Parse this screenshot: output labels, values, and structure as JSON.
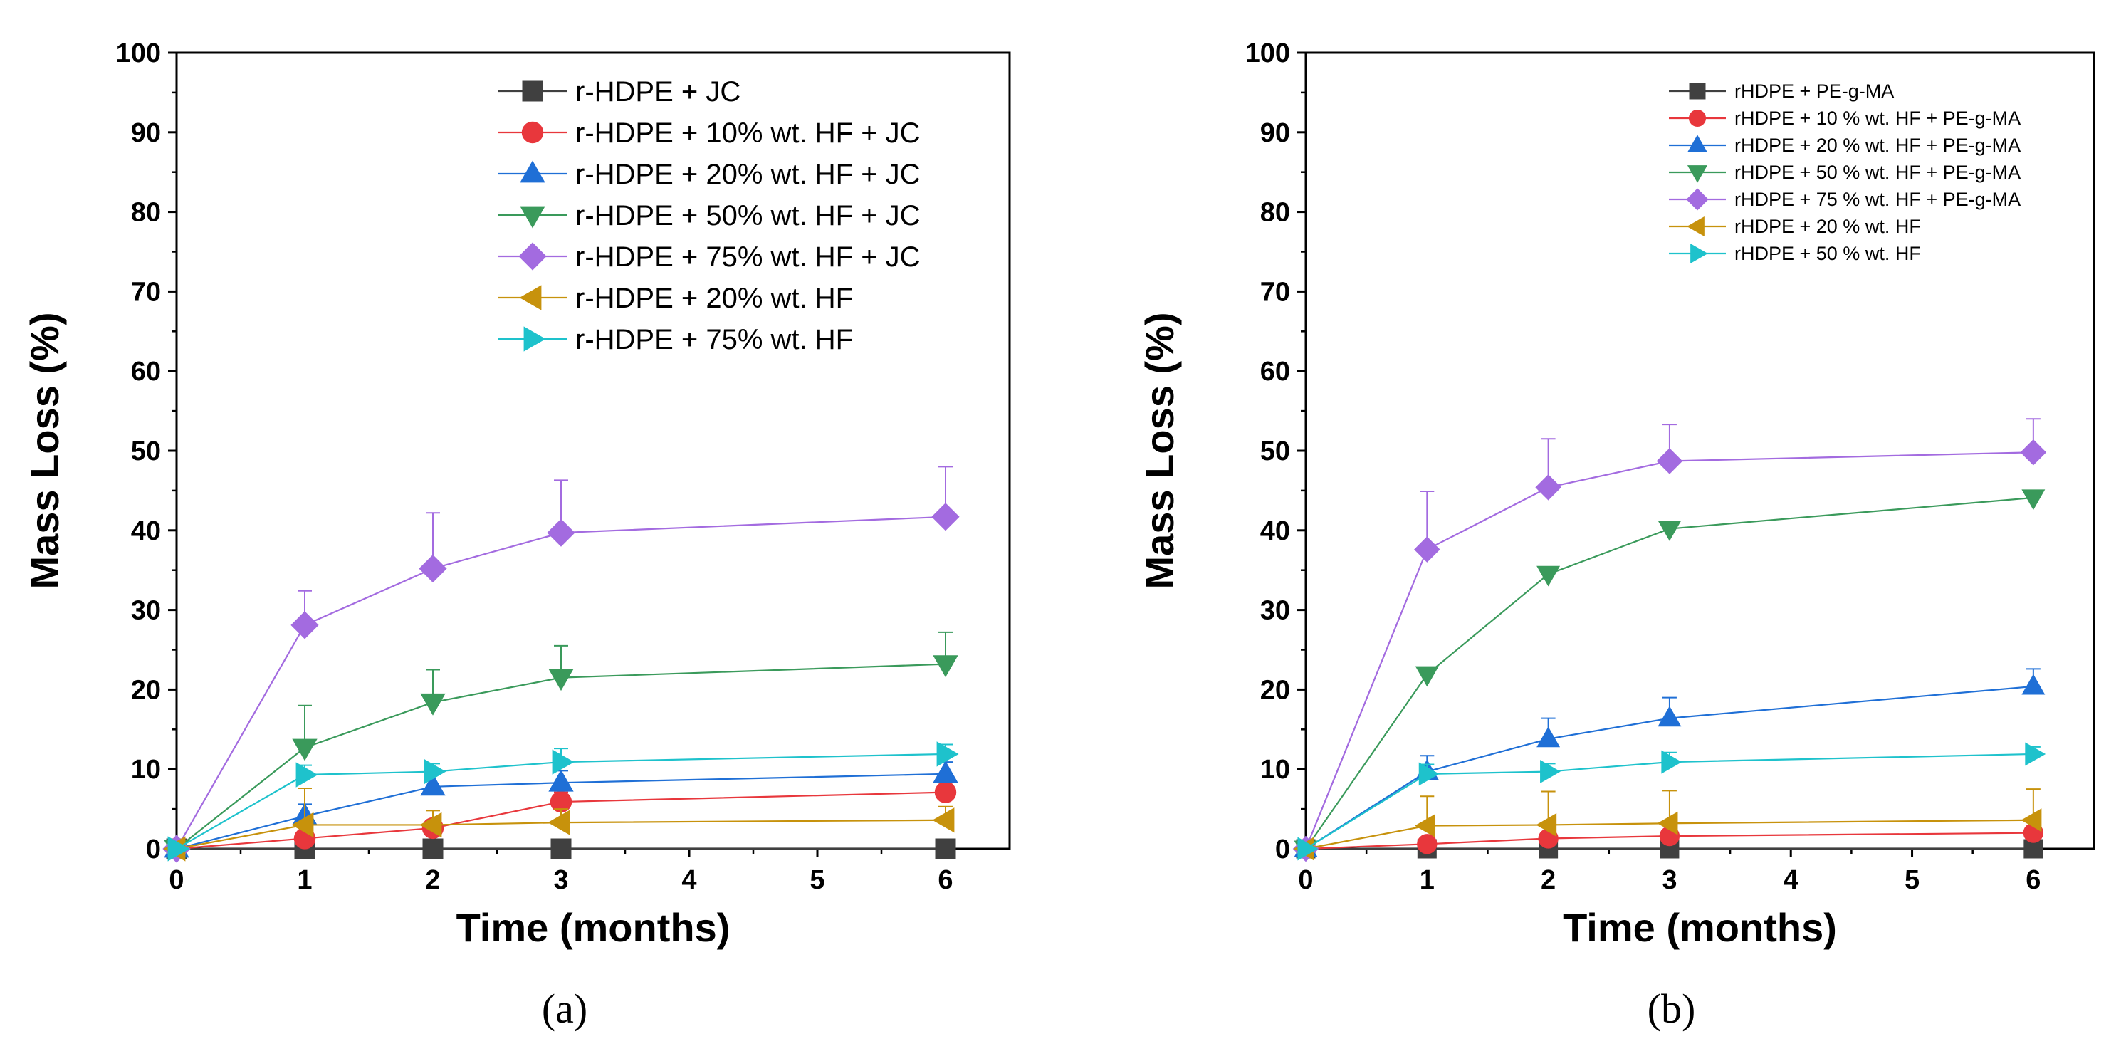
{
  "chart_data": [
    {
      "type": "line",
      "panel_label": "(a)",
      "xlabel": "Time (months)",
      "ylabel": "Mass Loss (%)",
      "xlim": [
        0,
        6.5
      ],
      "ylim": [
        0,
        100
      ],
      "x_ticks": [
        0,
        1,
        2,
        3,
        4,
        5,
        6
      ],
      "y_ticks": [
        0,
        10,
        20,
        30,
        40,
        50,
        60,
        70,
        80,
        90,
        100
      ],
      "legend_position": "top-right",
      "x": [
        0,
        1,
        2,
        3,
        6
      ],
      "series": [
        {
          "name": "r-HDPE + JC",
          "marker": "square",
          "color": "#404040",
          "values": [
            0,
            0,
            0,
            0,
            0
          ],
          "errors": [
            0,
            0,
            0,
            0,
            0
          ]
        },
        {
          "name": "r-HDPE + 10% wt. HF + JC",
          "marker": "circle",
          "color": "#e8373c",
          "values": [
            0,
            1.3,
            2.6,
            5.9,
            7.1
          ],
          "errors": [
            0,
            0.8,
            1.0,
            1.2,
            1.0
          ]
        },
        {
          "name": "r-HDPE + 20% wt. HF + JC",
          "marker": "triangle-up",
          "color": "#1f6fd6",
          "values": [
            0,
            4.1,
            7.8,
            8.3,
            9.4
          ],
          "errors": [
            0,
            1.5,
            1.5,
            1.5,
            1.5
          ]
        },
        {
          "name": "r-HDPE + 50% wt. HF + JC",
          "marker": "triangle-down",
          "color": "#3a9a5b",
          "values": [
            0,
            12.7,
            18.4,
            21.5,
            23.2
          ],
          "errors": [
            0,
            5.3,
            4.1,
            4.0,
            4.0
          ]
        },
        {
          "name": "r-HDPE + 75% wt. HF + JC",
          "marker": "diamond",
          "color": "#a36be0",
          "values": [
            0,
            28.1,
            35.2,
            39.7,
            41.7
          ],
          "errors": [
            0,
            4.3,
            7.0,
            6.6,
            6.3
          ]
        },
        {
          "name": "r-HDPE + 20% wt. HF",
          "marker": "triangle-left",
          "color": "#c7920c",
          "values": [
            0,
            3.0,
            3.0,
            3.3,
            3.6
          ],
          "errors": [
            0,
            4.6,
            1.8,
            1.7,
            1.7
          ]
        },
        {
          "name": "r-HDPE + 75% wt. HF",
          "marker": "triangle-right",
          "color": "#1ec2cc",
          "values": [
            0,
            9.3,
            9.7,
            10.9,
            11.9
          ],
          "errors": [
            0,
            1.2,
            1.0,
            1.7,
            1.2
          ]
        }
      ]
    },
    {
      "type": "line",
      "panel_label": "(b)",
      "xlabel": "Time (months)",
      "ylabel": "Mass Loss (%)",
      "xlim": [
        0,
        6.5
      ],
      "ylim": [
        0,
        100
      ],
      "x_ticks": [
        0,
        1,
        2,
        3,
        4,
        5,
        6
      ],
      "y_ticks": [
        0,
        10,
        20,
        30,
        40,
        50,
        60,
        70,
        80,
        90,
        100
      ],
      "legend_position": "top-right",
      "x": [
        0,
        1,
        2,
        3,
        6
      ],
      "series": [
        {
          "name": "rHDPE + PE-g-MA",
          "marker": "square",
          "color": "#404040",
          "values": [
            0,
            0,
            0,
            0,
            0
          ],
          "errors": [
            0,
            0,
            0,
            0,
            0
          ]
        },
        {
          "name": "rHDPE + 10 % wt. HF + PE-g-MA",
          "marker": "circle",
          "color": "#e8373c",
          "values": [
            0,
            0.6,
            1.3,
            1.6,
            2.0
          ],
          "errors": [
            0,
            0.8,
            0.8,
            0.8,
            0.8
          ]
        },
        {
          "name": "rHDPE + 20 % wt. HF + PE-g-MA",
          "marker": "triangle-up",
          "color": "#1f6fd6",
          "values": [
            0,
            9.7,
            13.8,
            16.4,
            20.4
          ],
          "errors": [
            0,
            2.0,
            2.6,
            2.6,
            2.2
          ]
        },
        {
          "name": "rHDPE + 50 % wt. HF + PE-g-MA",
          "marker": "triangle-down",
          "color": "#3a9a5b",
          "values": [
            0,
            21.9,
            34.5,
            40.2,
            44.1
          ],
          "errors": [
            0,
            0.5,
            0.5,
            0.5,
            0.5
          ]
        },
        {
          "name": "rHDPE + 75 % wt. HF + PE-g-MA",
          "marker": "diamond",
          "color": "#a36be0",
          "values": [
            0,
            37.6,
            45.4,
            48.7,
            49.8
          ],
          "errors": [
            0,
            7.3,
            6.1,
            4.6,
            4.2
          ]
        },
        {
          "name": "rHDPE + 20 % wt. HF",
          "marker": "triangle-left",
          "color": "#c7920c",
          "values": [
            0,
            2.9,
            3.0,
            3.2,
            3.6
          ],
          "errors": [
            0,
            3.7,
            4.2,
            4.1,
            3.9
          ]
        },
        {
          "name": "rHDPE + 50 % wt. HF",
          "marker": "triangle-right",
          "color": "#1ec2cc",
          "values": [
            0,
            9.4,
            9.7,
            10.9,
            11.9
          ],
          "errors": [
            0,
            1.2,
            1.0,
            1.2,
            0.9
          ]
        }
      ]
    }
  ]
}
